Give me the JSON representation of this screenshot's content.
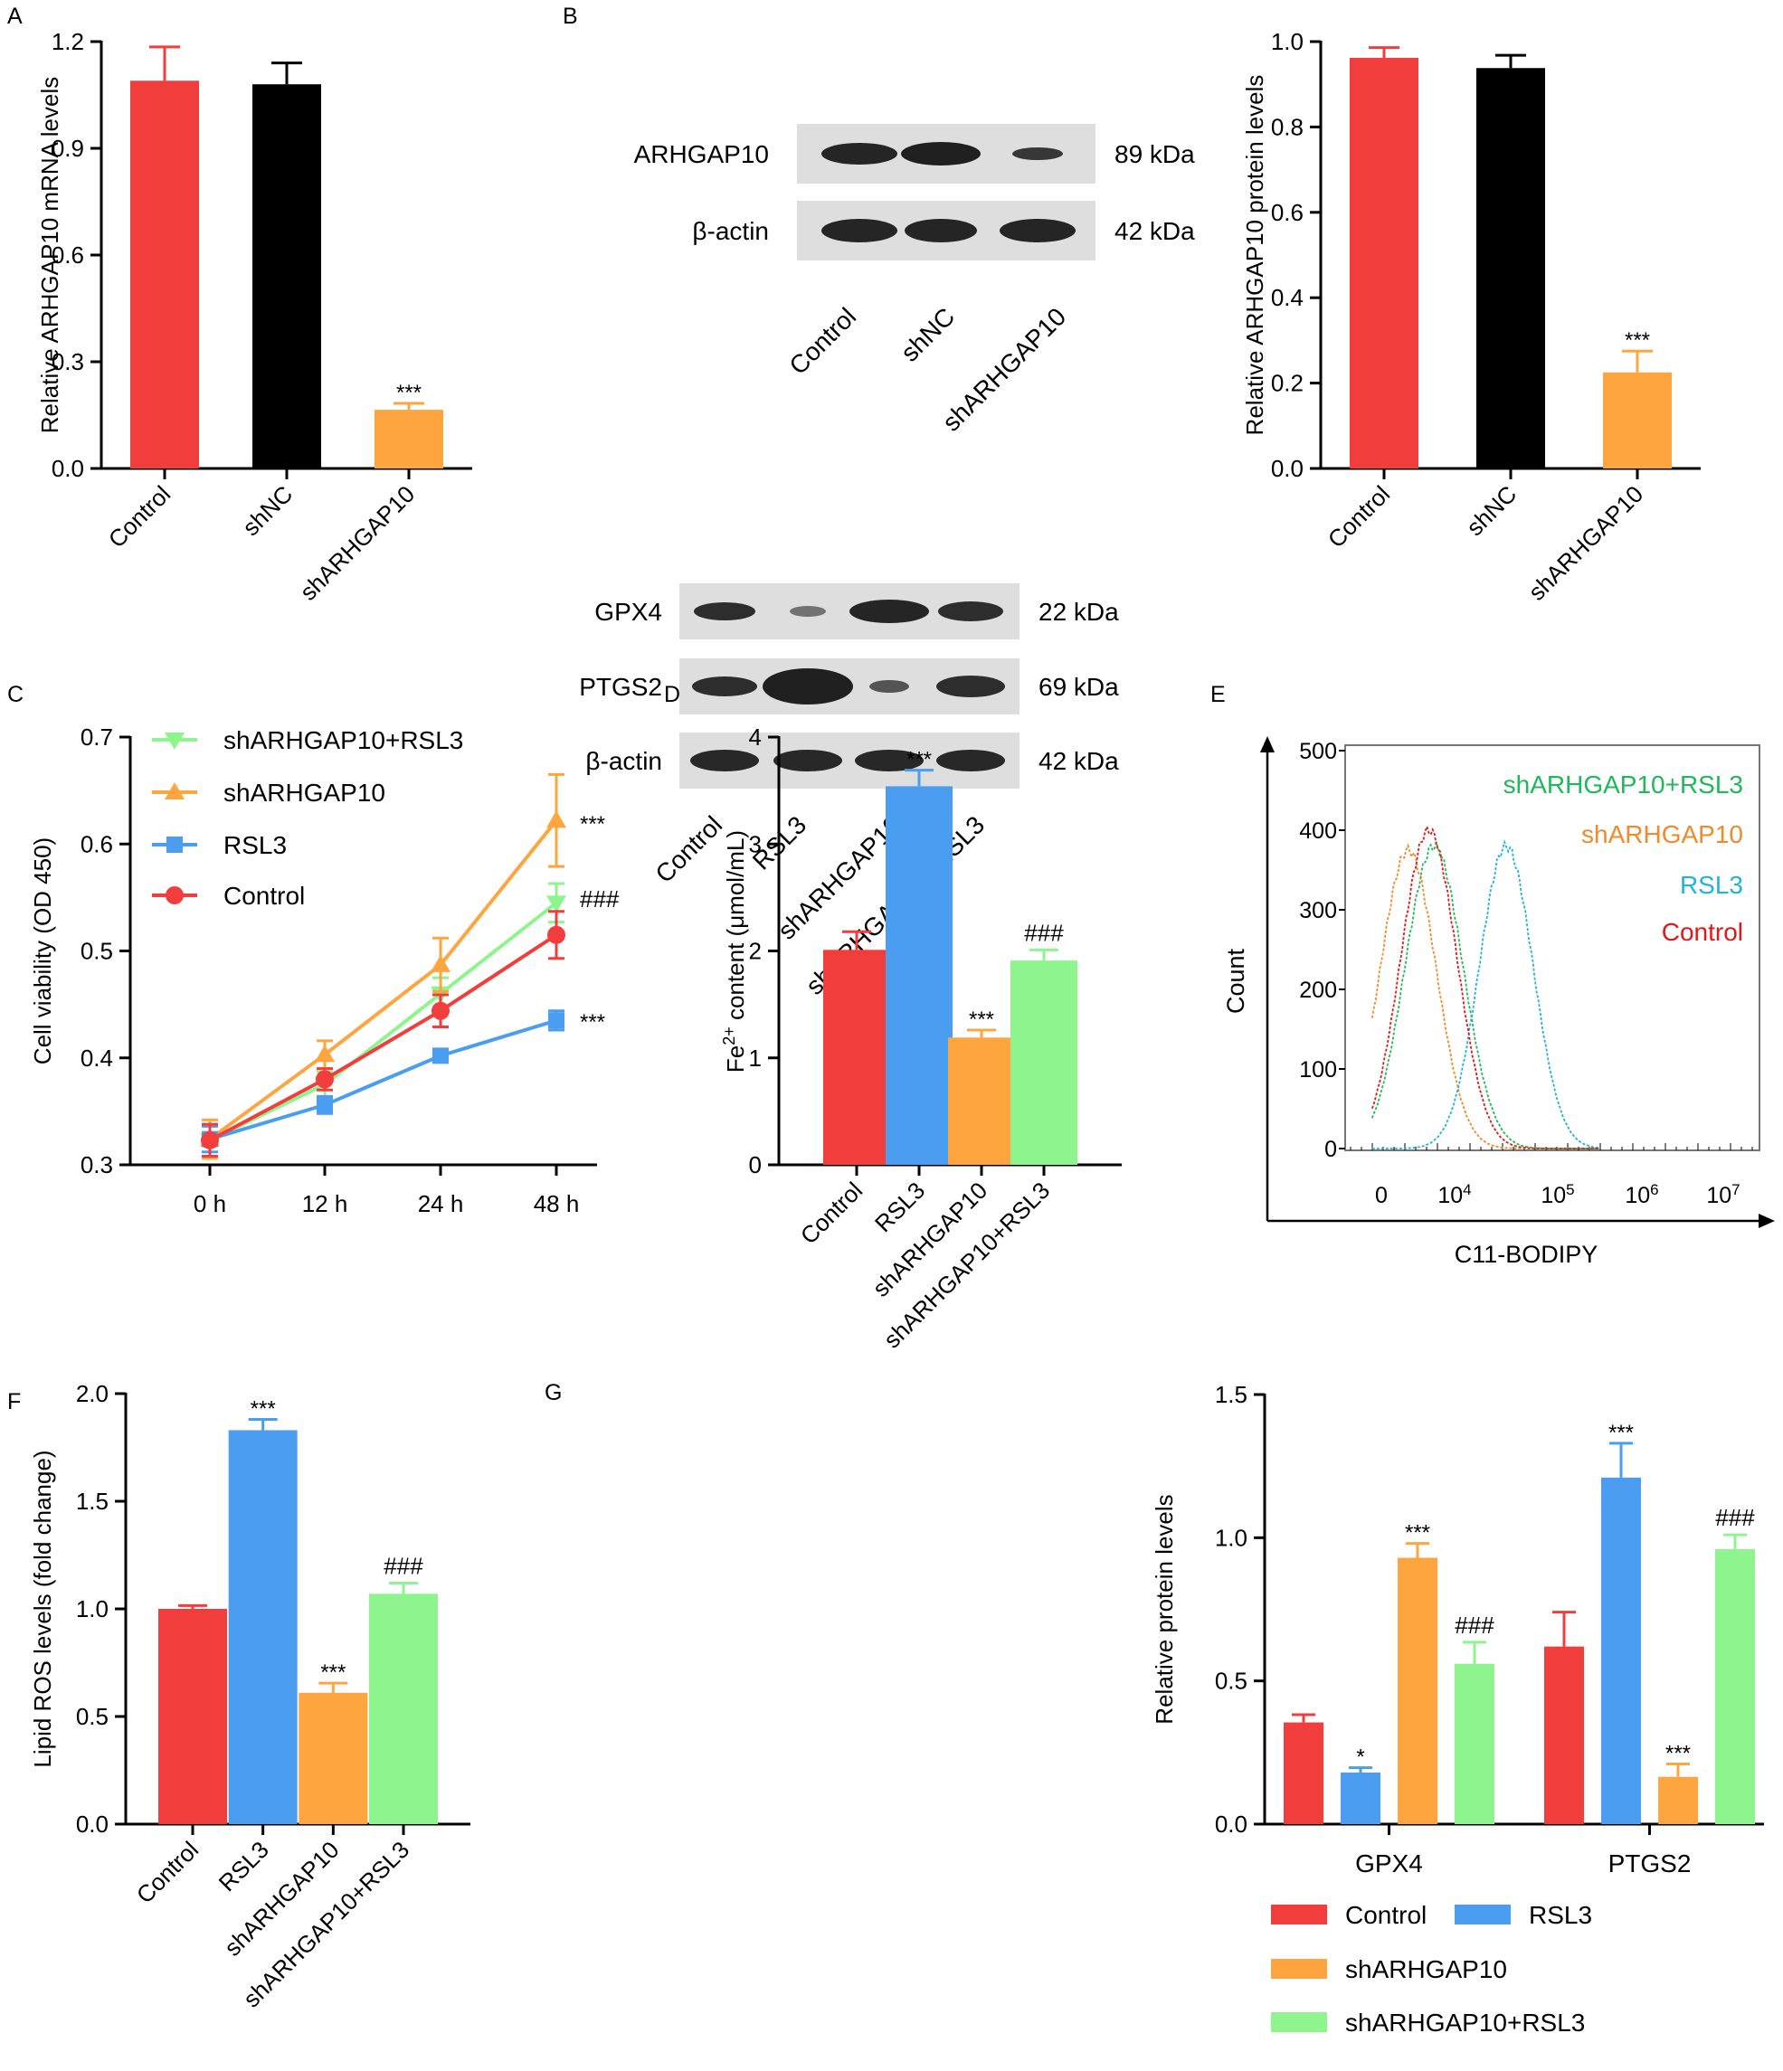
{
  "colors": {
    "control": "#f23d3d",
    "shnc": "#000000",
    "sharhgap10": "#ffa53f",
    "rsl3": "#4b9df0",
    "combo": "#8ef58e",
    "flow_green": "#1fb85a",
    "flow_orange": "#f08a2a",
    "flow_blue": "#22b3d8",
    "flow_red": "#e01818"
  },
  "panel_labels": [
    "A",
    "B",
    "C",
    "D",
    "E",
    "F",
    "G"
  ],
  "blot_b": {
    "rows": [
      "ARHGAP10",
      "β-actin"
    ],
    "sizes": [
      "89 kDa",
      "42 kDa"
    ],
    "lanes": [
      "Control",
      "shNC",
      "shARHGAP10"
    ]
  },
  "blot_g": {
    "rows": [
      "GPX4",
      "PTGS2",
      "β-actin"
    ],
    "sizes": [
      "22 kDa",
      "69 kDa",
      "42 kDa"
    ],
    "lanes": [
      "Control",
      "RSL3",
      "shARHGAP10",
      "shARHGAP10+RSL3"
    ]
  },
  "chart_data": [
    {
      "panel": "A",
      "type": "bar",
      "categories": [
        "Control",
        "shNC",
        "shARHGAP10"
      ],
      "values": [
        1.09,
        1.08,
        0.165
      ],
      "errors": [
        0.095,
        0.06,
        0.018
      ],
      "annotations": [
        "",
        "",
        "***"
      ],
      "ylabel": "Relative ARHGAP10 mRNA levels",
      "ylim": [
        0,
        1.2
      ],
      "yticks": [
        "0.0",
        "0.3",
        "0.6",
        "0.9",
        "1.2"
      ]
    },
    {
      "panel": "B",
      "type": "bar",
      "categories": [
        "Control",
        "shNC",
        "shARHGAP10"
      ],
      "values": [
        0.962,
        0.938,
        0.225
      ],
      "errors": [
        0.024,
        0.03,
        0.05
      ],
      "annotations": [
        "",
        "",
        "***"
      ],
      "ylabel": "Relative ARHGAP10 protein levels",
      "ylim": [
        0,
        1.0
      ],
      "yticks": [
        "0.0",
        "0.2",
        "0.4",
        "0.6",
        "0.8",
        "1.0"
      ]
    },
    {
      "panel": "C",
      "type": "line",
      "categories": [
        "0 h",
        "12 h",
        "24 h",
        "48 h"
      ],
      "series": [
        {
          "name": "shARHGAP10+RSL3",
          "values": [
            0.323,
            0.375,
            0.46,
            0.545
          ],
          "errors": [
            0.015,
            0.012,
            0.015,
            0.018
          ]
        },
        {
          "name": "shARHGAP10",
          "values": [
            0.324,
            0.403,
            0.487,
            0.622
          ],
          "errors": [
            0.018,
            0.013,
            0.025,
            0.043
          ]
        },
        {
          "name": "RSL3",
          "values": [
            0.324,
            0.356,
            0.402,
            0.435
          ],
          "errors": [
            0.012,
            0.008,
            0.006,
            0.009
          ]
        },
        {
          "name": "Control",
          "values": [
            0.323,
            0.38,
            0.444,
            0.515
          ],
          "errors": [
            0.015,
            0.01,
            0.015,
            0.022
          ]
        }
      ],
      "annotations": [
        "***",
        "###",
        "***"
      ],
      "ylabel": "Cell viability (OD 450)",
      "ylim": [
        0.3,
        0.7
      ],
      "yticks": [
        "0.3",
        "0.4",
        "0.5",
        "0.6",
        "0.7"
      ],
      "legend": "top-left"
    },
    {
      "panel": "D",
      "type": "bar",
      "categories": [
        "Control",
        "RSL3",
        "shARHGAP10",
        "shARHGAP10+RSL3"
      ],
      "values": [
        2.01,
        3.54,
        1.19,
        1.91
      ],
      "errors": [
        0.17,
        0.15,
        0.07,
        0.1
      ],
      "annotations": [
        "",
        "***",
        "***",
        "###"
      ],
      "ylabel": "Fe2+ content (μmol/mL)",
      "ylim": [
        0,
        4
      ],
      "yticks": [
        "0",
        "1",
        "2",
        "3",
        "4"
      ]
    },
    {
      "panel": "E",
      "type": "area",
      "series_names": [
        "shARHGAP10+RSL3",
        "shARHGAP10",
        "RSL3",
        "Control"
      ],
      "xlabel": "C11-BODIPY",
      "ylabel": "Count",
      "ylim": [
        0,
        500
      ],
      "yticks": [
        "0",
        "100",
        "200",
        "300",
        "400",
        "500"
      ],
      "xticks": [
        "0",
        "10",
        "10",
        "10",
        "10"
      ],
      "xtick_exps": [
        "",
        "4",
        "5",
        "6",
        "7"
      ],
      "peaks": [
        3.8,
        3.55,
        4.5,
        3.75
      ]
    },
    {
      "panel": "F",
      "type": "bar",
      "categories": [
        "Control",
        "RSL3",
        "shARHGAP10",
        "shARHGAP10+RSL3"
      ],
      "values": [
        1.0,
        1.83,
        0.61,
        1.07
      ],
      "errors": [
        0.015,
        0.05,
        0.045,
        0.05
      ],
      "annotations": [
        "",
        "***",
        "***",
        "###"
      ],
      "ylabel": "Lipid ROS levels (fold change)",
      "ylim": [
        0,
        2.0
      ],
      "yticks": [
        "0.0",
        "0.5",
        "1.0",
        "1.5",
        "2.0"
      ]
    },
    {
      "panel": "G",
      "type": "bar",
      "categories": [
        "GPX4",
        "PTGS2"
      ],
      "series": [
        {
          "name": "Control",
          "values": [
            0.355,
            0.62
          ],
          "errors": [
            0.027,
            0.12
          ]
        },
        {
          "name": "RSL3",
          "values": [
            0.18,
            1.21
          ],
          "errors": [
            0.017,
            0.12
          ]
        },
        {
          "name": "shARHGAP10",
          "values": [
            0.93,
            0.165
          ],
          "errors": [
            0.05,
            0.045
          ]
        },
        {
          "name": "shARHGAP10+RSL3",
          "values": [
            0.56,
            0.96
          ],
          "errors": [
            0.075,
            0.05
          ]
        }
      ],
      "annotations": [
        [
          "",
          "*",
          "***",
          "###"
        ],
        [
          "",
          "***",
          "***",
          "###"
        ]
      ],
      "ylabel": "Relative protein levels",
      "ylim": [
        0,
        1.5
      ],
      "yticks": [
        "0.0",
        "0.5",
        "1.0",
        "1.5"
      ],
      "legend": "bottom"
    }
  ]
}
